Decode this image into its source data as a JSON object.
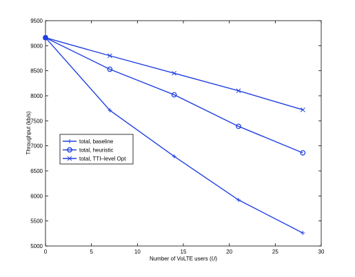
{
  "chart_data": {
    "type": "line",
    "title": "",
    "xlabel": "Number of VoLTE users (",
    "xlabel_var": "U",
    "xlabel_end": ")",
    "ylabel": "Throughput (kb/s)",
    "xlim": [
      0,
      30
    ],
    "ylim": [
      5000,
      9500
    ],
    "xticks": [
      0,
      5,
      10,
      15,
      20,
      25,
      30
    ],
    "yticks": [
      5000,
      5500,
      6000,
      6500,
      7000,
      7500,
      8000,
      8500,
      9000,
      9500
    ],
    "grid": false,
    "legend_position": "left-middle",
    "line_color": "#1f3fe0",
    "x": [
      0,
      7,
      14,
      21,
      28
    ],
    "series": [
      {
        "name": "total, baseline",
        "marker": "plus",
        "values": [
          9160,
          7710,
          6790,
          5920,
          5260
        ]
      },
      {
        "name": "total, heuristic",
        "marker": "circle",
        "values": [
          9160,
          8530,
          8020,
          7390,
          6860
        ]
      },
      {
        "name": "total, TTI–level Opt",
        "marker": "x",
        "values": [
          9160,
          8800,
          8450,
          8100,
          7720
        ]
      }
    ]
  }
}
